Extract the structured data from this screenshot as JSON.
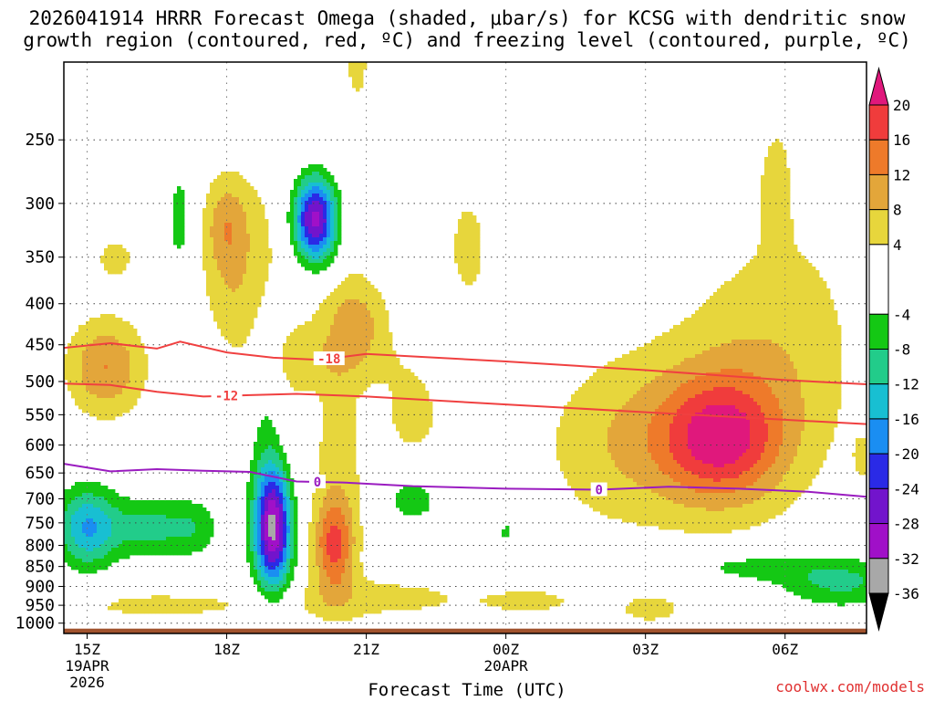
{
  "header": {
    "title_line1": "2026041914 HRRR Forecast Omega (shaded, μbar/s) for KCSG with dendritic snow",
    "title_line2": "growth region (contoured, red, ºC) and freezing level (contoured, purple, ºC)"
  },
  "watermark": "coolwx.com/models",
  "chart_data": {
    "type": "heatmap",
    "title": "2026041914 HRRR Forecast Omega (shaded, μbar/s) for KCSG with dendritic snow growth region (contoured, red, ºC) and freezing level (contoured, purple, ºC)",
    "xlabel": "Forecast Time (UTC)",
    "ylabel": "",
    "xlim": [
      14.5,
      31.75
    ],
    "ylim": [
      1000,
      200
    ],
    "y_scale": "log-pressure",
    "x_ticks": [
      {
        "x": 15,
        "label": "15Z",
        "sub1": "19APR",
        "sub2": "2026"
      },
      {
        "x": 18,
        "label": "18Z",
        "sub1": "",
        "sub2": ""
      },
      {
        "x": 21,
        "label": "21Z",
        "sub1": "",
        "sub2": ""
      },
      {
        "x": 24,
        "label": "00Z",
        "sub1": "20APR",
        "sub2": ""
      },
      {
        "x": 27,
        "label": "03Z",
        "sub1": "",
        "sub2": ""
      },
      {
        "x": 30,
        "label": "06Z",
        "sub1": "",
        "sub2": ""
      }
    ],
    "y_ticks": [
      250,
      300,
      350,
      400,
      450,
      500,
      550,
      600,
      650,
      700,
      750,
      800,
      850,
      900,
      950,
      1000
    ],
    "grid": true,
    "colorbar": {
      "labels": [
        "20",
        "16",
        "12",
        "8",
        "4",
        "-4",
        "-8",
        "-12",
        "-16",
        "-20",
        "-24",
        "-28",
        "-32",
        "-36"
      ],
      "bins": [
        {
          "from": 20,
          "to": 24,
          "color": "#e0187c"
        },
        {
          "from": 16,
          "to": 20,
          "color": "#f03c3c"
        },
        {
          "from": 12,
          "to": 16,
          "color": "#ee7a2a"
        },
        {
          "from": 8,
          "to": 12,
          "color": "#e3a63a"
        },
        {
          "from": 4,
          "to": 8,
          "color": "#e7d63c"
        },
        {
          "from": -4,
          "to": 4,
          "color": "#ffffff"
        },
        {
          "from": -8,
          "to": -4,
          "color": "#14c814"
        },
        {
          "from": -12,
          "to": -8,
          "color": "#22cc8a"
        },
        {
          "from": -16,
          "to": -12,
          "color": "#18bfd2"
        },
        {
          "from": -20,
          "to": -16,
          "color": "#1a8ef2"
        },
        {
          "from": -24,
          "to": -20,
          "color": "#2a2ae6"
        },
        {
          "from": -28,
          "to": -24,
          "color": "#7214cc"
        },
        {
          "from": -32,
          "to": -28,
          "color": "#a010c8"
        },
        {
          "from": -36,
          "to": -32,
          "color": "#a8a8a8"
        },
        {
          "from": -40,
          "to": -36,
          "color": "#000000"
        }
      ]
    },
    "omega_blobs": [
      {
        "x": 15.4,
        "p": 480,
        "dx": 0.6,
        "dp": 0.1,
        "v": 12
      },
      {
        "x": 15.6,
        "p": 350,
        "dx": 0.4,
        "dp": 0.06,
        "v": 5
      },
      {
        "x": 18.0,
        "p": 320,
        "dx": 0.35,
        "dp": 0.1,
        "v": 9
      },
      {
        "x": 18.2,
        "p": 400,
        "dx": 0.5,
        "dp": 0.12,
        "v": 5
      },
      {
        "x": 19.6,
        "p": 330,
        "dx": 1.3,
        "dp": 0.18,
        "v": 5
      },
      {
        "x": 20.8,
        "p": 190,
        "dx": 0.3,
        "dp": 0.18,
        "v": 5
      },
      {
        "x": 20.8,
        "p": 420,
        "dx": 0.45,
        "dp": 0.07,
        "v": 8
      },
      {
        "x": 20.2,
        "p": 470,
        "dx": 1.0,
        "dp": 0.06,
        "v": 5
      },
      {
        "x": 20.3,
        "p": 800,
        "dx": 0.3,
        "dp": 0.09,
        "v": 14
      },
      {
        "x": 20.4,
        "p": 650,
        "dx": 0.4,
        "dp": 0.25,
        "v": 6
      },
      {
        "x": 19.2,
        "p": 560,
        "dx": 0.35,
        "dp": 0.2,
        "v": 5
      },
      {
        "x": 22.0,
        "p": 550,
        "dx": 0.6,
        "dp": 0.12,
        "v": 5
      },
      {
        "x": 23.2,
        "p": 340,
        "dx": 0.4,
        "dp": 0.15,
        "v": 5
      },
      {
        "x": 21.5,
        "p": 930,
        "dx": 1.6,
        "dp": 0.05,
        "v": 5
      },
      {
        "x": 16.5,
        "p": 950,
        "dx": 2.0,
        "dp": 0.04,
        "v": 4.8
      },
      {
        "x": 26.3,
        "p": 600,
        "dx": 1.2,
        "dp": 0.18,
        "v": 6
      },
      {
        "x": 28.6,
        "p": 590,
        "dx": 0.9,
        "dp": 0.12,
        "v": 16
      },
      {
        "x": 28.6,
        "p": 560,
        "dx": 1.5,
        "dp": 0.22,
        "v": 6
      },
      {
        "x": 30.0,
        "p": 430,
        "dx": 1.3,
        "dp": 0.28,
        "v": 5
      },
      {
        "x": 29.8,
        "p": 280,
        "dx": 0.25,
        "dp": 0.12,
        "v": 5
      },
      {
        "x": 27.1,
        "p": 960,
        "dx": 0.5,
        "dp": 0.03,
        "v": 6
      },
      {
        "x": 31.7,
        "p": 620,
        "dx": 0.15,
        "dp": 0.04,
        "v": 6
      },
      {
        "x": 24.6,
        "p": 940,
        "dx": 0.8,
        "dp": 0.03,
        "v": 4.6
      },
      {
        "x": 17.0,
        "p": 315,
        "dx": 0.22,
        "dp": 0.13,
        "v": -6
      },
      {
        "x": 19.9,
        "p": 315,
        "dx": 0.35,
        "dp": 0.09,
        "v": -34
      },
      {
        "x": 19.0,
        "p": 760,
        "dx": 0.28,
        "dp": 0.12,
        "v": -30
      },
      {
        "x": 18.95,
        "p": 600,
        "dx": 0.3,
        "dp": 0.28,
        "v": -7
      },
      {
        "x": 15.0,
        "p": 760,
        "dx": 0.45,
        "dp": 0.08,
        "v": -16
      },
      {
        "x": 16.3,
        "p": 760,
        "dx": 0.6,
        "dp": 0.06,
        "v": -9
      },
      {
        "x": 17.3,
        "p": 760,
        "dx": 0.4,
        "dp": 0.06,
        "v": -6
      },
      {
        "x": 22.0,
        "p": 700,
        "dx": 0.4,
        "dp": 0.05,
        "v": -7
      },
      {
        "x": 24.0,
        "p": 770,
        "dx": 0.08,
        "dp": 0.02,
        "v": -6
      },
      {
        "x": 31.2,
        "p": 890,
        "dx": 0.9,
        "dp": 0.05,
        "v": -9
      },
      {
        "x": 29.2,
        "p": 850,
        "dx": 1.2,
        "dp": 0.035,
        "v": -6
      }
    ],
    "contours": [
      {
        "name": "-18",
        "label": "-18",
        "color": "#f04040",
        "label_x": 20.2,
        "x": [
          14.5,
          15.5,
          16.5,
          17.0,
          18.0,
          19.0,
          20.0,
          21.0,
          24.0,
          27.0,
          30.0,
          31.75
        ],
        "p": [
          454,
          448,
          455,
          446,
          460,
          467,
          470,
          462,
          472,
          484,
          498,
          504
        ]
      },
      {
        "name": "-12",
        "label": "-12",
        "color": "#f04040",
        "label_x": 18.0,
        "x": [
          14.5,
          15.5,
          16.5,
          17.5,
          18.5,
          19.5,
          21.0,
          24.0,
          27.0,
          30.0,
          31.75
        ],
        "p": [
          503,
          505,
          515,
          522,
          520,
          518,
          522,
          534,
          546,
          558,
          565
        ]
      },
      {
        "name": "0",
        "label": "0",
        "color": "#9a1cc0",
        "label_x": 19.95,
        "label2_x": 26.0,
        "x": [
          14.5,
          15.5,
          16.5,
          17.5,
          18.5,
          19.5,
          20.5,
          22.0,
          24.0,
          26.0,
          27.5,
          29.0,
          30.5,
          31.75
        ],
        "p": [
          633,
          647,
          643,
          646,
          648,
          666,
          668,
          675,
          680,
          682,
          676,
          680,
          686,
          696
        ]
      }
    ]
  }
}
